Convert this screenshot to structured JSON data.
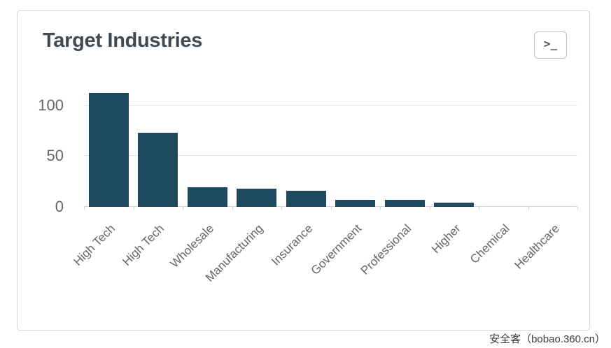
{
  "panel": {
    "title": "Target Industries",
    "terminal_button_label": ">_"
  },
  "watermark": {
    "text": "安全客（bobao.360.cn）"
  },
  "colors": {
    "bar": "#1d4a5e",
    "card_border": "#c9dae6",
    "gridline": "#e1e6ea",
    "axis": "#c9d9e4",
    "axis_label": "#6a6560",
    "title": "#3f4a52"
  },
  "chart_data": {
    "type": "bar",
    "title": "Target Industries",
    "categories": [
      "High Tech",
      "High Tech",
      "Wholesale",
      "Manufacturing",
      "Insurance",
      "Government",
      "Professional",
      "Higher",
      "Chemical",
      "Healthcare"
    ],
    "values": [
      112,
      73,
      19,
      18,
      16,
      7,
      7,
      4,
      0,
      0
    ],
    "xlabel": "",
    "ylabel": "",
    "ylim": [
      0,
      124
    ],
    "yticks": [
      0,
      50,
      100
    ],
    "grid": true,
    "legend": "none"
  }
}
